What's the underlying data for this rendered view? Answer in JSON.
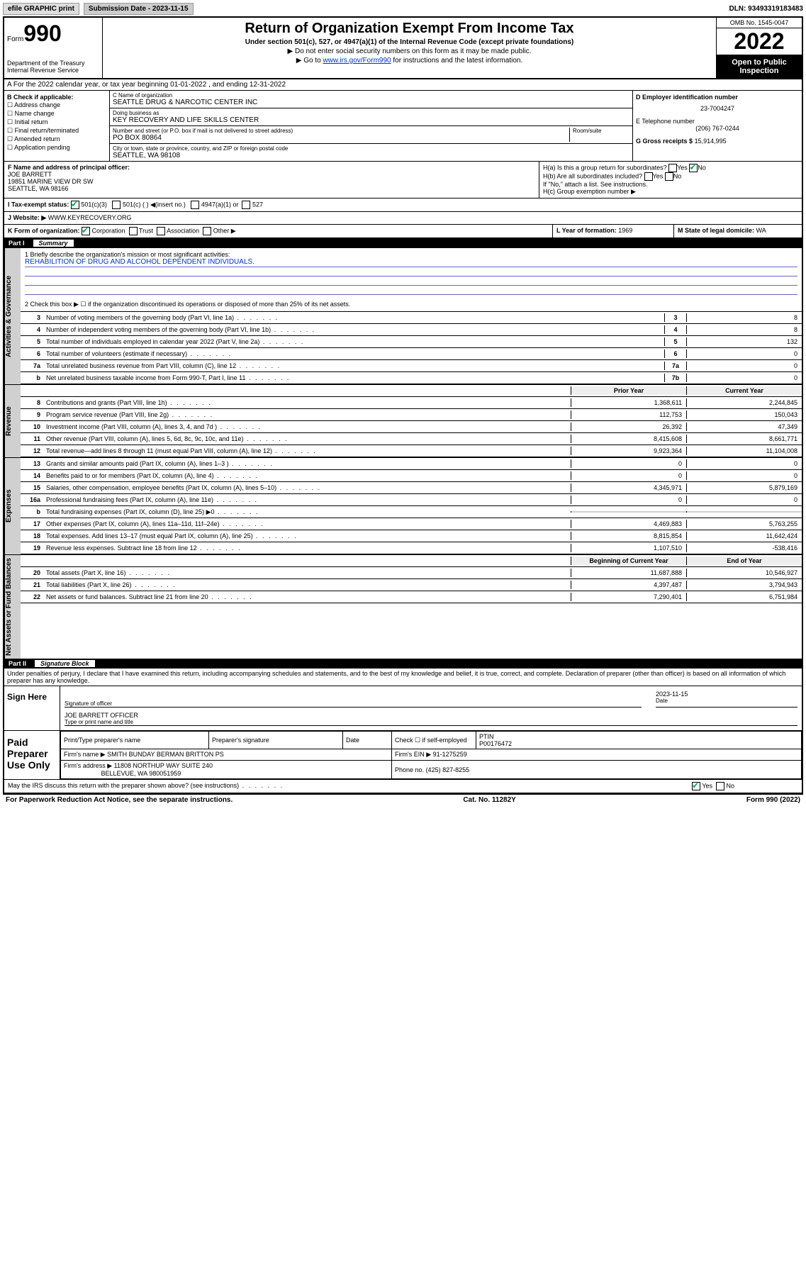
{
  "topbar": {
    "efile": "efile GRAPHIC print",
    "submission": "Submission Date - 2023-11-15",
    "dln": "DLN: 93493319183483"
  },
  "header": {
    "form_label": "Form",
    "form_num": "990",
    "title": "Return of Organization Exempt From Income Tax",
    "subtitle": "Under section 501(c), 527, or 4947(a)(1) of the Internal Revenue Code (except private foundations)",
    "note1": "▶ Do not enter social security numbers on this form as it may be made public.",
    "note2_pre": "▶ Go to ",
    "note2_link": "www.irs.gov/Form990",
    "note2_post": " for instructions and the latest information.",
    "dept": "Department of the Treasury\nInternal Revenue Service",
    "omb": "OMB No. 1545-0047",
    "year": "2022",
    "open": "Open to Public Inspection"
  },
  "row_a": "A For the 2022 calendar year, or tax year beginning 01-01-2022    , and ending 12-31-2022",
  "col_b": {
    "label": "B Check if applicable:",
    "items": [
      "Address change",
      "Name change",
      "Initial return",
      "Final return/terminated",
      "Amended return",
      "Application pending"
    ]
  },
  "col_c": {
    "name_label": "C Name of organization",
    "name": "SEATTLE DRUG & NARCOTIC CENTER INC",
    "dba_label": "Doing business as",
    "dba": "KEY RECOVERY AND LIFE SKILLS CENTER",
    "addr_label": "Number and street (or P.O. box if mail is not delivered to street address)",
    "room_label": "Room/suite",
    "addr": "PO BOX 80864",
    "city_label": "City or town, state or province, country, and ZIP or foreign postal code",
    "city": "SEATTLE, WA  98108"
  },
  "col_d": {
    "ein_label": "D Employer identification number",
    "ein": "23-7004247",
    "tel_label": "E Telephone number",
    "tel": "(206) 767-0244",
    "gross_label": "G Gross receipts $",
    "gross": "15,914,995"
  },
  "row_f": {
    "label": "F  Name and address of principal officer:",
    "name": "JOE BARRETT",
    "addr1": "19851 MARINE VIEW DR SW",
    "addr2": "SEATTLE, WA  98166"
  },
  "row_h": {
    "a": "H(a)  Is this a group return for subordinates?",
    "b": "H(b)  Are all subordinates included?",
    "b_note": "If \"No,\" attach a list. See instructions.",
    "c": "H(c)  Group exemption number ▶"
  },
  "row_i": {
    "label": "I    Tax-exempt status:",
    "o1": "501(c)(3)",
    "o2": "501(c) (  ) ◀(insert no.)",
    "o3": "4947(a)(1) or",
    "o4": "527"
  },
  "row_j": {
    "label": "J    Website: ▶",
    "val": "WWW.KEYRECOVERY.ORG"
  },
  "row_k": {
    "label": "K Form of organization:",
    "o1": "Corporation",
    "o2": "Trust",
    "o3": "Association",
    "o4": "Other ▶"
  },
  "row_l": {
    "label": "L Year of formation:",
    "val": "1969"
  },
  "row_m": {
    "label": "M State of legal domicile:",
    "val": "WA"
  },
  "part1": {
    "num": "Part I",
    "title": "Summary"
  },
  "mission": {
    "label": "1   Briefly describe the organization's mission or most significant activities:",
    "text": "REHABILITION OF DRUG AND ALCOHOL DEPENDENT INDIVIDUALS."
  },
  "line2": "2   Check this box ▶ ☐  if the organization discontinued its operations or disposed of more than 25% of its net assets.",
  "gov_rows": [
    {
      "n": "3",
      "d": "Number of voting members of the governing body (Part VI, line 1a)",
      "b": "3",
      "v": "8"
    },
    {
      "n": "4",
      "d": "Number of independent voting members of the governing body (Part VI, line 1b)",
      "b": "4",
      "v": "8"
    },
    {
      "n": "5",
      "d": "Total number of individuals employed in calendar year 2022 (Part V, line 2a)",
      "b": "5",
      "v": "132"
    },
    {
      "n": "6",
      "d": "Total number of volunteers (estimate if necessary)",
      "b": "6",
      "v": "0"
    },
    {
      "n": "7a",
      "d": "Total unrelated business revenue from Part VIII, column (C), line 12",
      "b": "7a",
      "v": "0"
    },
    {
      "n": "b",
      "d": "Net unrelated business taxable income from Form 990-T, Part I, line 11",
      "b": "7b",
      "v": "0"
    }
  ],
  "two_col_hdr": {
    "prior": "Prior Year",
    "current": "Current Year"
  },
  "revenue_rows": [
    {
      "n": "8",
      "d": "Contributions and grants (Part VIII, line 1h)",
      "p": "1,368,611",
      "c": "2,244,845"
    },
    {
      "n": "9",
      "d": "Program service revenue (Part VIII, line 2g)",
      "p": "112,753",
      "c": "150,043"
    },
    {
      "n": "10",
      "d": "Investment income (Part VIII, column (A), lines 3, 4, and 7d )",
      "p": "26,392",
      "c": "47,349"
    },
    {
      "n": "11",
      "d": "Other revenue (Part VIII, column (A), lines 5, 6d, 8c, 9c, 10c, and 11e)",
      "p": "8,415,608",
      "c": "8,661,771"
    },
    {
      "n": "12",
      "d": "Total revenue—add lines 8 through 11 (must equal Part VIII, column (A), line 12)",
      "p": "9,923,364",
      "c": "11,104,008"
    }
  ],
  "expense_rows": [
    {
      "n": "13",
      "d": "Grants and similar amounts paid (Part IX, column (A), lines 1–3 )",
      "p": "0",
      "c": "0"
    },
    {
      "n": "14",
      "d": "Benefits paid to or for members (Part IX, column (A), line 4)",
      "p": "0",
      "c": "0"
    },
    {
      "n": "15",
      "d": "Salaries, other compensation, employee benefits (Part IX, column (A), lines 5–10)",
      "p": "4,345,971",
      "c": "5,879,169"
    },
    {
      "n": "16a",
      "d": "Professional fundraising fees (Part IX, column (A), line 11e)",
      "p": "0",
      "c": "0"
    },
    {
      "n": "b",
      "d": "Total fundraising expenses (Part IX, column (D), line 25) ▶0",
      "p": "",
      "c": "",
      "shade": true
    },
    {
      "n": "17",
      "d": "Other expenses (Part IX, column (A), lines 11a–11d, 11f–24e)",
      "p": "4,469,883",
      "c": "5,763,255"
    },
    {
      "n": "18",
      "d": "Total expenses. Add lines 13–17 (must equal Part IX, column (A), line 25)",
      "p": "8,815,854",
      "c": "11,642,424"
    },
    {
      "n": "19",
      "d": "Revenue less expenses. Subtract line 18 from line 12",
      "p": "1,107,510",
      "c": "-538,416"
    }
  ],
  "net_hdr": {
    "begin": "Beginning of Current Year",
    "end": "End of Year"
  },
  "net_rows": [
    {
      "n": "20",
      "d": "Total assets (Part X, line 16)",
      "p": "11,687,888",
      "c": "10,546,927"
    },
    {
      "n": "21",
      "d": "Total liabilities (Part X, line 26)",
      "p": "4,397,487",
      "c": "3,794,943"
    },
    {
      "n": "22",
      "d": "Net assets or fund balances. Subtract line 21 from line 20",
      "p": "7,290,401",
      "c": "6,751,984"
    }
  ],
  "vtabs": {
    "gov": "Activities & Governance",
    "rev": "Revenue",
    "exp": "Expenses",
    "net": "Net Assets or Fund Balances"
  },
  "part2": {
    "num": "Part II",
    "title": "Signature Block"
  },
  "penalties": "Under penalties of perjury, I declare that I have examined this return, including accompanying schedules and statements, and to the best of my knowledge and belief, it is true, correct, and complete. Declaration of preparer (other than officer) is based on all information of which preparer has any knowledge.",
  "sign": {
    "here": "Sign Here",
    "sig_label": "Signature of officer",
    "date_label": "Date",
    "date": "2023-11-15",
    "name": "JOE BARRETT OFFICER",
    "name_label": "Type or print name and title"
  },
  "paid": {
    "label": "Paid Preparer Use Only",
    "h1": "Print/Type preparer's name",
    "h2": "Preparer's signature",
    "h3": "Date",
    "h4_check": "Check ☐ if self-employed",
    "h4_ptin": "PTIN",
    "ptin": "P00176472",
    "firm_name_label": "Firm's name      ▶",
    "firm_name": "SMITH BUNDAY BERMAN BRITTON PS",
    "firm_ein_label": "Firm's EIN ▶",
    "firm_ein": "91-1275259",
    "firm_addr_label": "Firm's address ▶",
    "firm_addr1": "11808 NORTHUP WAY SUITE 240",
    "firm_addr2": "BELLEVUE, WA  980051959",
    "phone_label": "Phone no.",
    "phone": "(425) 827-8255"
  },
  "discuss": "May the IRS discuss this return with the preparer shown above? (see instructions)",
  "footer": {
    "left": "For Paperwork Reduction Act Notice, see the separate instructions.",
    "mid": "Cat. No. 11282Y",
    "right": "Form 990 (2022)"
  }
}
